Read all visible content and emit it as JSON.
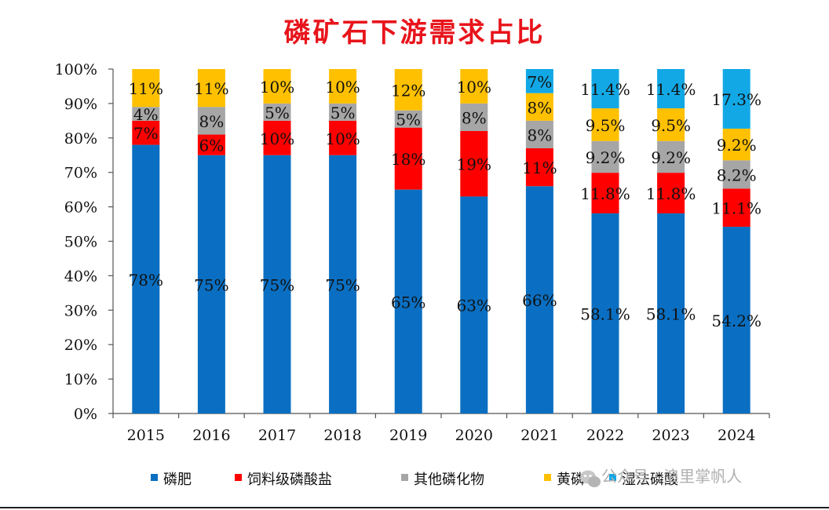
{
  "colors": {
    "title": "#e8141b",
    "磷肥": "#0a6fc2",
    "饲料级磷酸盐": "#ff0000",
    "其他磷化物": "#a6a6a6",
    "黄磷": "#ffc000",
    "湿法磷酸": "#12a8e6"
  },
  "watermark": {
    "icon": "wechat-icon",
    "text": "公众号 · 浪里掌帆人"
  },
  "chart_data": {
    "type": "bar",
    "stacked": true,
    "title": "磷矿石下游需求占比",
    "xlabel": "",
    "ylabel": "",
    "ylim": [
      0,
      100
    ],
    "yticks": [
      "0%",
      "10%",
      "20%",
      "30%",
      "40%",
      "50%",
      "60%",
      "70%",
      "80%",
      "90%",
      "100%"
    ],
    "categories": [
      "2015",
      "2016",
      "2017",
      "2018",
      "2019",
      "2020",
      "2021",
      "2022",
      "2023",
      "2024"
    ],
    "legend_position": "bottom",
    "series": [
      {
        "name": "磷肥",
        "values": [
          78,
          75,
          75,
          75,
          65,
          63,
          66,
          58.1,
          58.1,
          54.2
        ],
        "labels": [
          "78%",
          "75%",
          "75%",
          "75%",
          "65%",
          "63%",
          "66%",
          "58.1%",
          "58.1%",
          "54.2%"
        ]
      },
      {
        "name": "饲料级磷酸盐",
        "values": [
          7,
          6,
          10,
          10,
          18,
          19,
          11,
          11.8,
          11.8,
          11.1
        ],
        "labels": [
          "7%",
          "6%",
          "10%",
          "10%",
          "18%",
          "19%",
          "11%",
          "11.8%",
          "11.8%",
          "11.1%"
        ]
      },
      {
        "name": "其他磷化物",
        "values": [
          4,
          8,
          5,
          5,
          5,
          8,
          8,
          9.2,
          9.2,
          8.2
        ],
        "labels": [
          "4%",
          "8%",
          "5%",
          "5%",
          "5%",
          "8%",
          "8%",
          "9.2%",
          "9.2%",
          "8.2%"
        ]
      },
      {
        "name": "黄磷",
        "values": [
          11,
          11,
          10,
          10,
          12,
          10,
          8,
          9.5,
          9.5,
          9.2
        ],
        "labels": [
          "11%",
          "11%",
          "10%",
          "10%",
          "12%",
          "10%",
          "8%",
          "9.5%",
          "9.5%",
          "9.2%"
        ]
      },
      {
        "name": "湿法磷酸",
        "values": [
          0,
          0,
          0,
          0,
          0,
          0,
          7,
          11.4,
          11.4,
          17.3
        ],
        "labels": [
          "",
          "",
          "",
          "",
          "",
          "",
          "7%",
          "11.4%",
          "11.4%",
          "17.3%"
        ]
      }
    ]
  }
}
